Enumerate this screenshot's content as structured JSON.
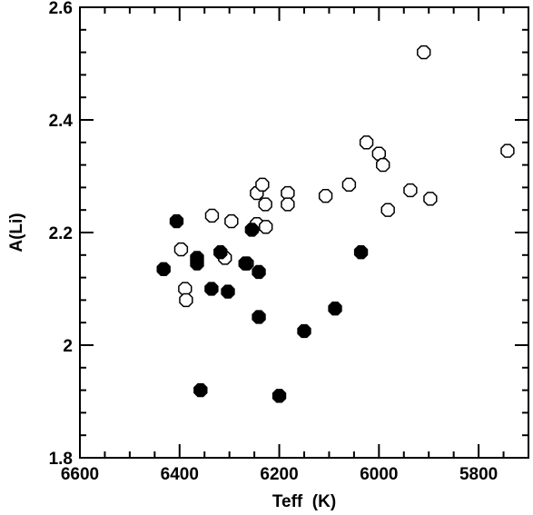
{
  "chart_data": {
    "type": "scatter",
    "title": "",
    "xlabel": "Teff  (K)",
    "ylabel": "A(Li)",
    "xlim": [
      6600,
      5700
    ],
    "ylim": [
      1.8,
      2.6
    ],
    "x_inverted": true,
    "x_major_ticks": [
      6600,
      6400,
      6200,
      6000,
      5800
    ],
    "x_tick_labels": [
      "6600",
      "6400",
      "6200",
      "6000",
      "5800"
    ],
    "x_minor_step": 50,
    "y_major_ticks": [
      1.8,
      2.0,
      2.2,
      2.4,
      2.6
    ],
    "y_tick_labels": [
      "1.8",
      "2",
      "2.2",
      "2.4",
      "2.6"
    ],
    "y_minor_step": 0.04,
    "grid": false,
    "legend": "none",
    "series": [
      {
        "marker": "open-octagon",
        "points": [
          {
            "x": 6397,
            "y": 2.17
          },
          {
            "x": 6389,
            "y": 2.1
          },
          {
            "x": 6387,
            "y": 2.08
          },
          {
            "x": 6335,
            "y": 2.23
          },
          {
            "x": 6309,
            "y": 2.155
          },
          {
            "x": 6296,
            "y": 2.22
          },
          {
            "x": 6265,
            "y": 2.145
          },
          {
            "x": 6245,
            "y": 2.27
          },
          {
            "x": 6245,
            "y": 2.215
          },
          {
            "x": 6234,
            "y": 2.285
          },
          {
            "x": 6228,
            "y": 2.25
          },
          {
            "x": 6227,
            "y": 2.21
          },
          {
            "x": 6183,
            "y": 2.27
          },
          {
            "x": 6183,
            "y": 2.25
          },
          {
            "x": 6107,
            "y": 2.265
          },
          {
            "x": 6060,
            "y": 2.285
          },
          {
            "x": 6025,
            "y": 2.36
          },
          {
            "x": 6000,
            "y": 2.34
          },
          {
            "x": 5992,
            "y": 2.32
          },
          {
            "x": 5982,
            "y": 2.24
          },
          {
            "x": 5937,
            "y": 2.275
          },
          {
            "x": 5910,
            "y": 2.52
          },
          {
            "x": 5897,
            "y": 2.26
          },
          {
            "x": 5742,
            "y": 2.345
          }
        ]
      },
      {
        "marker": "filled-octagon",
        "points": [
          {
            "x": 6432,
            "y": 2.135
          },
          {
            "x": 6406,
            "y": 2.22
          },
          {
            "x": 6365,
            "y": 2.155
          },
          {
            "x": 6365,
            "y": 2.145
          },
          {
            "x": 6358,
            "y": 1.92
          },
          {
            "x": 6336,
            "y": 2.1
          },
          {
            "x": 6318,
            "y": 2.165
          },
          {
            "x": 6303,
            "y": 2.095
          },
          {
            "x": 6268,
            "y": 2.145
          },
          {
            "x": 6255,
            "y": 2.205
          },
          {
            "x": 6241,
            "y": 2.13
          },
          {
            "x": 6241,
            "y": 2.05
          },
          {
            "x": 6200,
            "y": 1.91
          },
          {
            "x": 6150,
            "y": 2.025
          },
          {
            "x": 6088,
            "y": 2.065
          },
          {
            "x": 6036,
            "y": 2.165
          }
        ]
      }
    ]
  }
}
